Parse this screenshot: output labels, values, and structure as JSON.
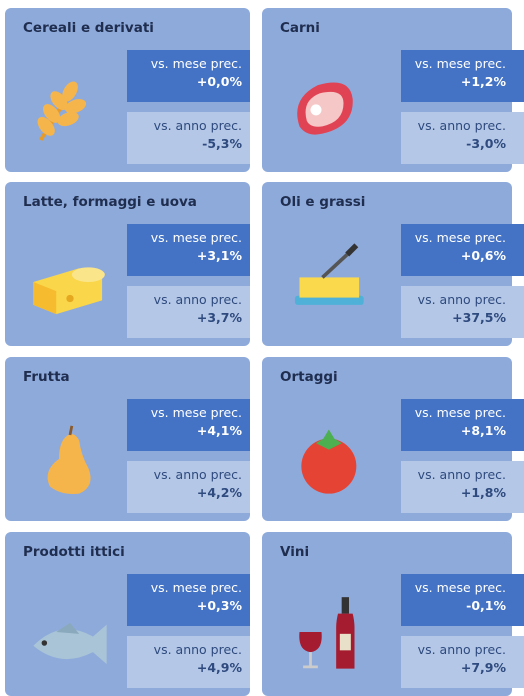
{
  "cards": [
    {
      "title": "Cereali e derivati",
      "month_label": "vs. mese prec.",
      "month_value": "+0,0%",
      "year_label": "vs. anno prec.",
      "year_value": "-5,3%"
    },
    {
      "title": "Carni",
      "month_label": "vs. mese prec.",
      "month_value": "+1,2%",
      "year_label": "vs. anno prec.",
      "year_value": "-3,0%"
    },
    {
      "title": "Latte, formaggi e uova",
      "month_label": "vs. mese prec.",
      "month_value": "+3,1%",
      "year_label": "vs. anno prec.",
      "year_value": "+3,7%"
    },
    {
      "title": "Oli e grassi",
      "month_label": "vs. mese prec.",
      "month_value": "+0,6%",
      "year_label": "vs. anno prec.",
      "year_value": "+37,5%"
    },
    {
      "title": "Frutta",
      "month_label": "vs. mese prec.",
      "month_value": "+4,1%",
      "year_label": "vs. anno prec.",
      "year_value": "+4,2%"
    },
    {
      "title": "Ortaggi",
      "month_label": "vs. mese prec.",
      "month_value": "+8,1%",
      "year_label": "vs. anno prec.",
      "year_value": "+1,8%"
    },
    {
      "title": "Prodotti ittici",
      "month_label": "vs. mese prec.",
      "month_value": "+0,3%",
      "year_label": "vs. anno prec.",
      "year_value": "+4,9%"
    },
    {
      "title": "Vini",
      "month_label": "vs. mese prec.",
      "month_value": "-0,1%",
      "year_label": "vs. anno prec.",
      "year_value": "+7,9%"
    }
  ]
}
